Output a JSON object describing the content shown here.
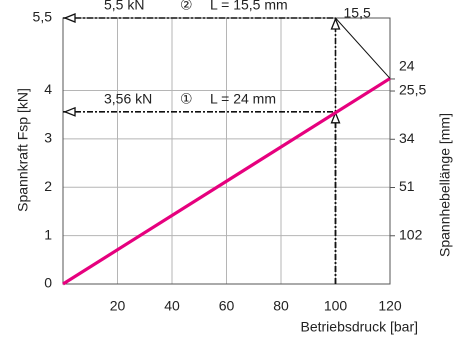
{
  "chart_data": {
    "type": "line",
    "x_label": "Betriebsdruck [bar]",
    "y_label": "Spannkraft Fsp [kN]",
    "y2_label": "Spannhebellänge [mm]",
    "xlim": [
      0,
      120
    ],
    "xticks": [
      20,
      40,
      60,
      80,
      100,
      120
    ],
    "ylim": [
      0,
      5.5
    ],
    "yticks": [
      0,
      1,
      2,
      3,
      4,
      {
        "value": 5.5,
        "label": "5,5"
      }
    ],
    "y2scale": "reciprocal",
    "y2lim": [
      null,
      18.5
    ],
    "y2ticks": [
      {
        "value": 102,
        "label": "102"
      },
      {
        "value": 51,
        "label": "51"
      },
      {
        "value": 34,
        "label": "34"
      },
      {
        "value": 25.5,
        "label": "25,5"
      },
      {
        "value": 24,
        "label": "24"
      }
    ],
    "grid": true,
    "series": [
      {
        "color": "#e6007e",
        "x": [
          0,
          120
        ],
        "values": [
          0,
          4.25
        ]
      }
    ],
    "reference_lines": [
      {
        "x": 100,
        "y": 5.5,
        "label": "5,5 kN",
        "marker": "②",
        "text": "L = 15,5 mm"
      },
      {
        "x": 100,
        "y": 3.56,
        "label": "3,56 kN",
        "marker": "①",
        "text": "L = 24 mm"
      }
    ],
    "annotation": "15,5"
  }
}
